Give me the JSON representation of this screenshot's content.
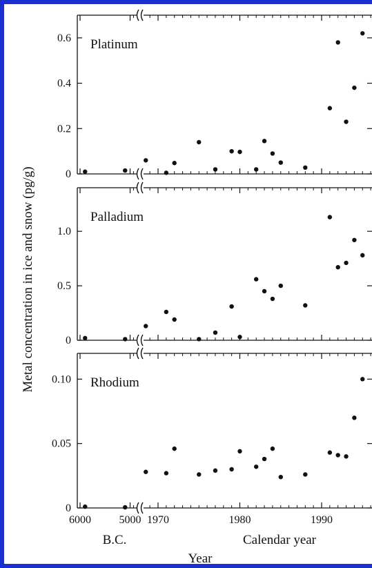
{
  "chart_data": {
    "type": "scatter",
    "ylabel": "Metal concentration in ice and snow (pg/g)",
    "xlabel": "Year",
    "x_groups": [
      {
        "label": "B.C.",
        "tick_labels": [
          "6000",
          "5000"
        ]
      },
      {
        "label": "Calendar year",
        "tick_labels": [
          "1970",
          "1980",
          "1990"
        ]
      }
    ],
    "xlim_calendar": [
      1967,
      1996
    ],
    "series": [
      {
        "name": "Platinum",
        "ylim": [
          0,
          0.7
        ],
        "y_ticks": [
          0,
          0.2,
          0.4,
          0.6
        ],
        "y_tick_labels": [
          "0",
          "0.2",
          "0.4",
          "0.6"
        ],
        "bc_points": [
          {
            "x": 5900,
            "y": 0.01
          },
          {
            "x": 5100,
            "y": 0.015
          }
        ],
        "points": [
          {
            "x": 1968.5,
            "y": 0.06
          },
          {
            "x": 1971,
            "y": 0.005
          },
          {
            "x": 1972,
            "y": 0.048
          },
          {
            "x": 1975,
            "y": 0.14
          },
          {
            "x": 1977,
            "y": 0.02
          },
          {
            "x": 1979,
            "y": 0.1
          },
          {
            "x": 1980,
            "y": 0.097
          },
          {
            "x": 1982,
            "y": 0.02
          },
          {
            "x": 1983,
            "y": 0.145
          },
          {
            "x": 1984,
            "y": 0.09
          },
          {
            "x": 1985,
            "y": 0.05
          },
          {
            "x": 1988,
            "y": 0.028
          },
          {
            "x": 1991,
            "y": 0.29
          },
          {
            "x": 1992,
            "y": 0.58
          },
          {
            "x": 1993,
            "y": 0.23
          },
          {
            "x": 1994,
            "y": 0.38
          },
          {
            "x": 1995,
            "y": 0.62
          }
        ]
      },
      {
        "name": "Palladium",
        "ylim": [
          0,
          1.4
        ],
        "y_ticks": [
          0,
          0.5,
          1.0
        ],
        "y_tick_labels": [
          "0",
          "0.5",
          "1.0"
        ],
        "bc_points": [
          {
            "x": 5900,
            "y": 0.02
          },
          {
            "x": 5100,
            "y": 0.01
          }
        ],
        "points": [
          {
            "x": 1968.5,
            "y": 0.13
          },
          {
            "x": 1971,
            "y": 0.26
          },
          {
            "x": 1972,
            "y": 0.19
          },
          {
            "x": 1975,
            "y": 0.01
          },
          {
            "x": 1977,
            "y": 0.07
          },
          {
            "x": 1979,
            "y": 0.31
          },
          {
            "x": 1980,
            "y": 0.03
          },
          {
            "x": 1982,
            "y": 0.56
          },
          {
            "x": 1983,
            "y": 0.45
          },
          {
            "x": 1984,
            "y": 0.38
          },
          {
            "x": 1985,
            "y": 0.5
          },
          {
            "x": 1988,
            "y": 0.32
          },
          {
            "x": 1991,
            "y": 1.13
          },
          {
            "x": 1992,
            "y": 0.67
          },
          {
            "x": 1993,
            "y": 0.71
          },
          {
            "x": 1994,
            "y": 0.92
          },
          {
            "x": 1995,
            "y": 0.78
          }
        ]
      },
      {
        "name": "Rhodium",
        "ylim": [
          0,
          0.12
        ],
        "y_ticks": [
          0,
          0.05,
          0.1
        ],
        "y_tick_labels": [
          "0",
          "0.05",
          "0.10"
        ],
        "bc_points": [
          {
            "x": 5900,
            "y": 0.001
          },
          {
            "x": 5100,
            "y": 0.0005
          }
        ],
        "points": [
          {
            "x": 1968.5,
            "y": 0.028
          },
          {
            "x": 1971,
            "y": 0.027
          },
          {
            "x": 1972,
            "y": 0.046
          },
          {
            "x": 1975,
            "y": 0.026
          },
          {
            "x": 1977,
            "y": 0.029
          },
          {
            "x": 1979,
            "y": 0.03
          },
          {
            "x": 1980,
            "y": 0.044
          },
          {
            "x": 1982,
            "y": 0.032
          },
          {
            "x": 1983,
            "y": 0.038
          },
          {
            "x": 1984,
            "y": 0.046
          },
          {
            "x": 1985,
            "y": 0.024
          },
          {
            "x": 1988,
            "y": 0.026
          },
          {
            "x": 1991,
            "y": 0.043
          },
          {
            "x": 1992,
            "y": 0.041
          },
          {
            "x": 1993,
            "y": 0.04
          },
          {
            "x": 1994,
            "y": 0.07
          },
          {
            "x": 1995,
            "y": 0.1
          }
        ]
      }
    ],
    "colors": {
      "frame": "#1a2fd0",
      "ink": "#111111"
    }
  }
}
